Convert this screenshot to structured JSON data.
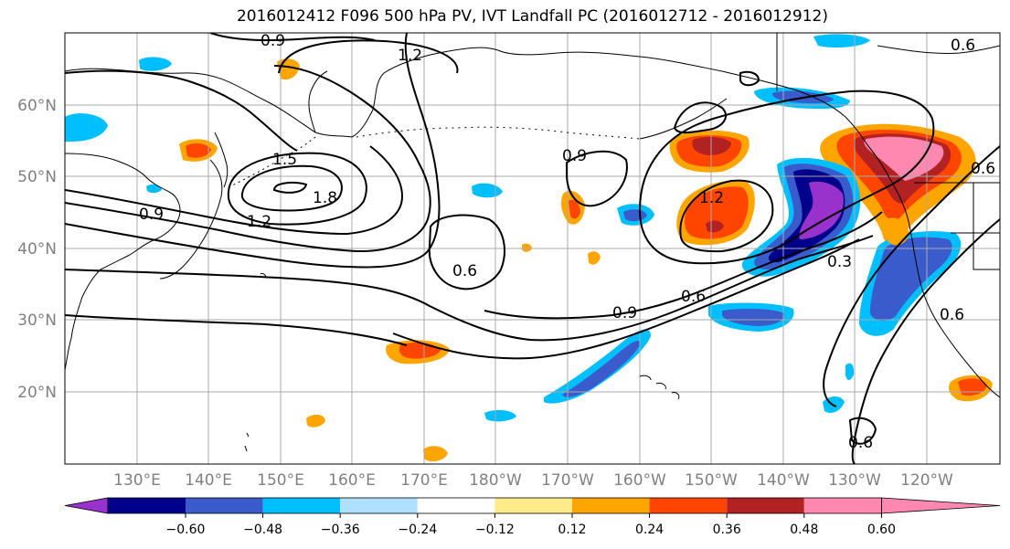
{
  "title": "2016012412 F096 500 hPa PV, IVT Landfall PC (2016012712 - 2016012912)",
  "map": {
    "lat_labels": [
      "60°N",
      "50°N",
      "40°N",
      "30°N",
      "20°N"
    ],
    "lon_labels": [
      "130°E",
      "140°E",
      "150°E",
      "160°E",
      "170°E",
      "180°W",
      "170°W",
      "160°W",
      "150°W",
      "140°W",
      "130°W",
      "120°W"
    ],
    "contour_labels": [
      "0.9",
      "1.2",
      "1.5",
      "1.8",
      "0.9",
      "1.2",
      "0.9",
      "1.2",
      "0.6",
      "0.9",
      "0.6",
      "0.3",
      "0.6",
      "0.6",
      "0.6",
      "0.6"
    ],
    "colors": {
      "gridline": "#a9a9a9",
      "coastline": "#000000",
      "contour": "#000000"
    }
  },
  "colorbar": {
    "colors": [
      "#9932cc",
      "#00008b",
      "#3a5bcc",
      "#00bfff",
      "#b0e0ff",
      "#ffffff",
      "#ffeb8a",
      "#ffa500",
      "#ff4500",
      "#b22222",
      "#ff88b0"
    ],
    "tick_labels": [
      "−0.60",
      "−0.48",
      "−0.36",
      "−0.24",
      "−0.12",
      "0.12",
      "0.24",
      "0.36",
      "0.48",
      "0.60"
    ]
  }
}
